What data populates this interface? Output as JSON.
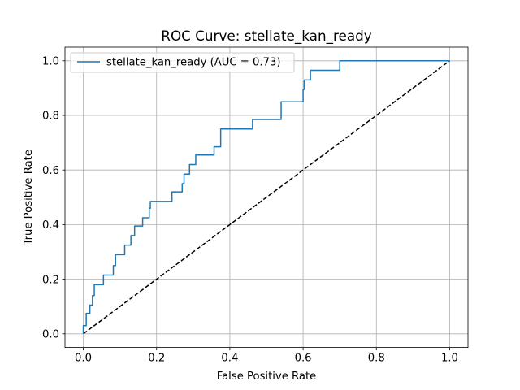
{
  "chart_data": {
    "type": "line",
    "title": "ROC Curve: stellate_kan_ready",
    "xlabel": "False Positive Rate",
    "ylabel": "True Positive Rate",
    "xlim": [
      -0.05,
      1.05
    ],
    "ylim": [
      -0.05,
      1.05
    ],
    "xticks": [
      0.0,
      0.2,
      0.4,
      0.6,
      0.8,
      1.0
    ],
    "xtick_labels": [
      "0.0",
      "0.2",
      "0.4",
      "0.6",
      "0.8",
      "1.0"
    ],
    "yticks": [
      0.0,
      0.2,
      0.4,
      0.6,
      0.8,
      1.0
    ],
    "ytick_labels": [
      "0.0",
      "0.2",
      "0.4",
      "0.6",
      "0.8",
      "1.0"
    ],
    "grid": true,
    "legend_position": "top-left",
    "series": [
      {
        "name": "stellate_kan_ready (AUC = 0.73)",
        "color": "#1f77b4",
        "style": "solid",
        "x": [
          0.0,
          0.0,
          0.008,
          0.008,
          0.018,
          0.018,
          0.025,
          0.025,
          0.03,
          0.03,
          0.055,
          0.055,
          0.082,
          0.082,
          0.088,
          0.088,
          0.113,
          0.113,
          0.13,
          0.13,
          0.14,
          0.14,
          0.162,
          0.162,
          0.18,
          0.18,
          0.183,
          0.183,
          0.242,
          0.242,
          0.27,
          0.27,
          0.275,
          0.275,
          0.29,
          0.29,
          0.307,
          0.307,
          0.357,
          0.357,
          0.375,
          0.375,
          0.462,
          0.462,
          0.54,
          0.54,
          0.6,
          0.6,
          0.603,
          0.603,
          0.62,
          0.62,
          0.7,
          0.7,
          1.0
        ],
        "y": [
          0.0,
          0.03,
          0.03,
          0.075,
          0.075,
          0.105,
          0.105,
          0.14,
          0.14,
          0.18,
          0.18,
          0.215,
          0.215,
          0.25,
          0.25,
          0.29,
          0.29,
          0.325,
          0.325,
          0.36,
          0.36,
          0.395,
          0.395,
          0.425,
          0.425,
          0.46,
          0.46,
          0.485,
          0.485,
          0.52,
          0.52,
          0.55,
          0.55,
          0.585,
          0.585,
          0.62,
          0.62,
          0.655,
          0.655,
          0.685,
          0.685,
          0.75,
          0.75,
          0.785,
          0.785,
          0.85,
          0.85,
          0.895,
          0.895,
          0.93,
          0.93,
          0.965,
          0.965,
          1.0,
          1.0
        ]
      },
      {
        "name": "",
        "color": "#000000",
        "style": "dashed",
        "x": [
          0.0,
          1.0
        ],
        "y": [
          0.0,
          1.0
        ]
      }
    ]
  }
}
